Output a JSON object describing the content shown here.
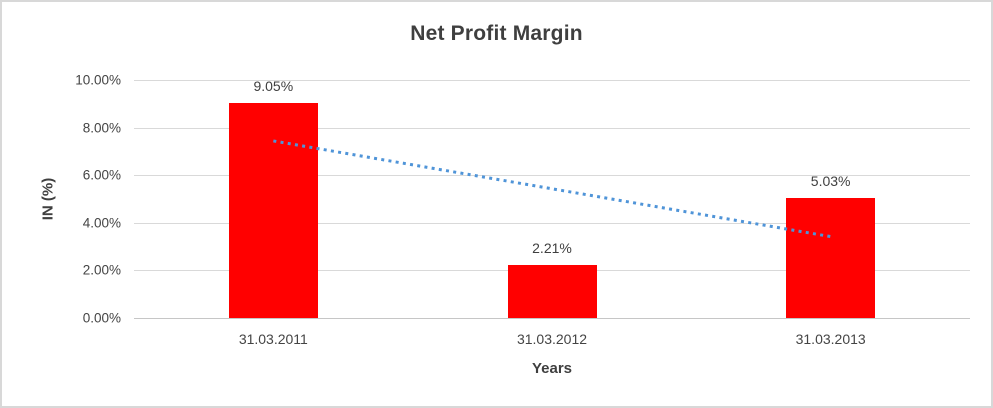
{
  "chart_data": {
    "type": "bar",
    "title": "Net Profit Margin",
    "categories": [
      "31.03.2011",
      "31.03.2012",
      "31.03.2013"
    ],
    "values": [
      9.05,
      2.21,
      5.03
    ],
    "data_labels": [
      "9.05%",
      "2.21%",
      "5.03%"
    ],
    "xlabel": "Years",
    "ylabel": "IN (%)",
    "ylim": [
      0,
      10
    ],
    "ytick_step": 2,
    "ytick_labels": [
      "0.00%",
      "2.00%",
      "4.00%",
      "6.00%",
      "8.00%",
      "10.00%"
    ],
    "grid": true,
    "legend": "none",
    "bar_color": "#ff0000",
    "gridline_color": "#d9d9d9",
    "text_color": "#3f3f3f",
    "trendline": {
      "type": "linear",
      "style": "dotted",
      "color": "#4f94d8",
      "start_value": 7.44,
      "end_value": 3.42
    }
  }
}
